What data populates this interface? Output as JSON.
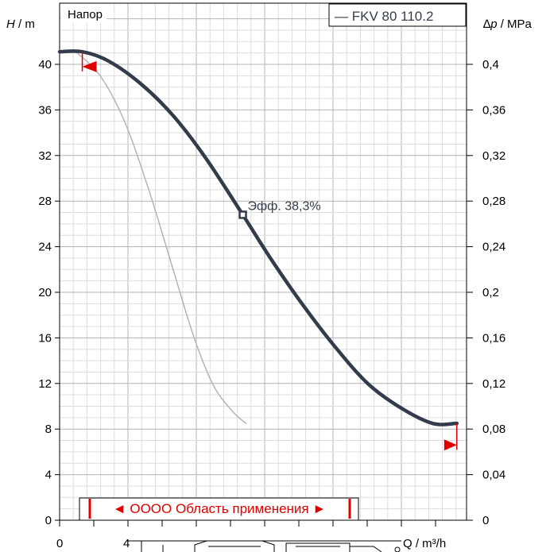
{
  "chart_data": {
    "type": "line",
    "title": "Напор",
    "legend": "— FKV 80 110.2",
    "legend_position": "top-right",
    "grid": true,
    "y_left": {
      "label_var": "H",
      "label_unit": " / m",
      "ylim": [
        0,
        44
      ],
      "ticks": [
        0,
        4,
        8,
        12,
        16,
        20,
        24,
        28,
        32,
        36,
        40
      ]
    },
    "y_right": {
      "label_prefix": "∆",
      "label_var": "p",
      "label_unit": " / MPa",
      "ticks": [
        0,
        0.04,
        0.08,
        0.12,
        0.16,
        0.2,
        0.24,
        0.28,
        0.32,
        0.36,
        0.4
      ],
      "tick_labels": [
        "0",
        "0,04",
        "0,08",
        "0,12",
        "0,16",
        "0,2",
        "0,24",
        "0,28",
        "0,32",
        "0,36",
        "0,4"
      ]
    },
    "x": {
      "label": "Q / m³/h",
      "tick_labels": [
        "0",
        "4"
      ]
    },
    "series": [
      {
        "color": "#333c4b",
        "x": [
          0,
          1.4,
          3,
          5,
          7,
          9,
          11.3,
          13,
          15,
          17,
          19,
          21,
          23,
          24.5
        ],
        "y": [
          41.1,
          41.1,
          40.3,
          38.3,
          35.5,
          31.8,
          26.8,
          23.0,
          18.9,
          15.2,
          12.0,
          9.9,
          8.5,
          8.5
        ]
      },
      {
        "color": "#b4b4b4",
        "x": [
          1.0,
          2.5,
          4,
          5.5,
          7,
          8.3,
          9.5,
          10.7,
          11.5
        ],
        "y": [
          41.1,
          39.0,
          35.0,
          29.0,
          22.0,
          16.0,
          11.8,
          9.5,
          8.5
        ]
      }
    ],
    "operating_point": {
      "x": 11.3,
      "y": 26.8,
      "label": "Эфф.  38,3%"
    },
    "range_markers": {
      "start": [
        1.4,
        39.8
      ],
      "end": [
        24.5,
        6.6
      ]
    },
    "application_range_label": "◄ OOOO Область применения ►"
  }
}
